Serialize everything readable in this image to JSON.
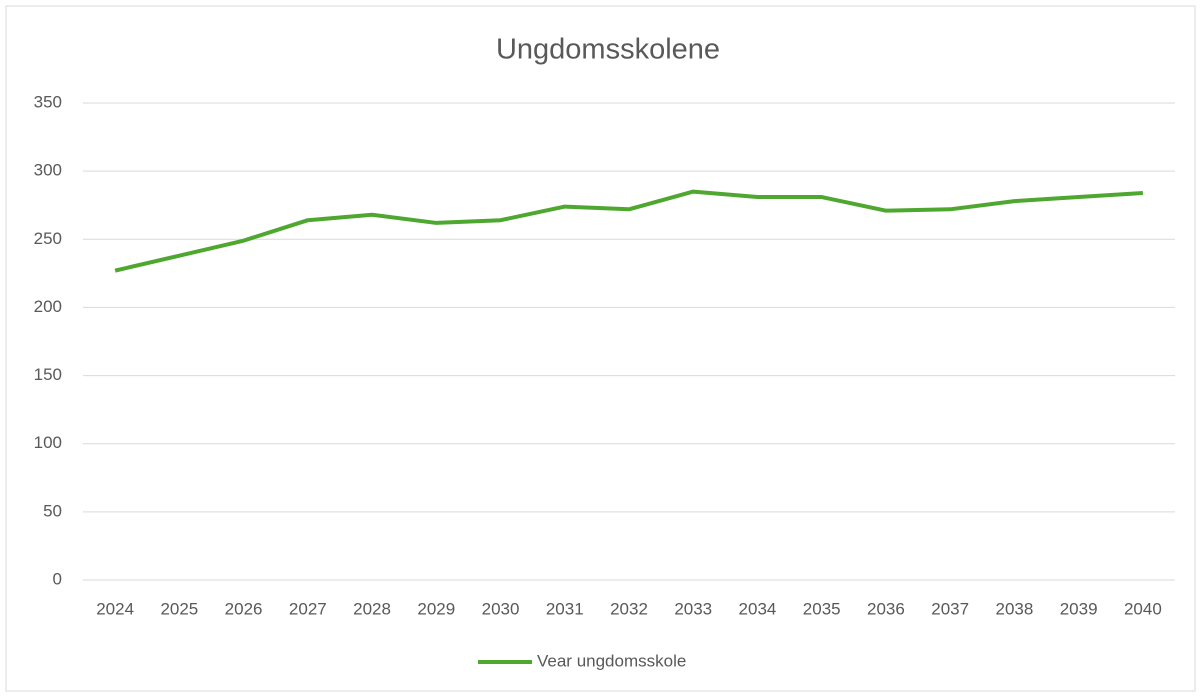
{
  "chart_data": {
    "type": "line",
    "title": "Ungdomsskolene",
    "categories": [
      "2024",
      "2025",
      "2026",
      "2027",
      "2028",
      "2029",
      "2030",
      "2031",
      "2032",
      "2033",
      "2034",
      "2035",
      "2036",
      "2037",
      "2038",
      "2039",
      "2040"
    ],
    "series": [
      {
        "name": "Vear ungdomsskole",
        "color": "#4ea72e",
        "values": [
          227,
          238,
          249,
          264,
          268,
          262,
          264,
          274,
          272,
          285,
          281,
          281,
          271,
          272,
          278,
          281,
          284
        ]
      }
    ],
    "ylim": [
      0,
      350
    ],
    "yticks": [
      0,
      50,
      100,
      150,
      200,
      250,
      300,
      350
    ],
    "grid": true,
    "legend": "bottom"
  }
}
